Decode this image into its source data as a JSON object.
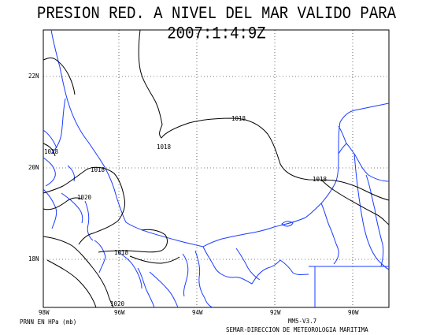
{
  "title": "PRESION RED. A NIVEL DEL MAR VALIDO PARA 2007:1:4:9Z",
  "map": {
    "lat_ticks": [
      {
        "label": "22N",
        "lat": 22
      },
      {
        "label": "20N",
        "lat": 20
      },
      {
        "label": "18N",
        "lat": 18
      }
    ],
    "lon_ticks": [
      {
        "label": "98W",
        "lon": -98
      },
      {
        "label": "96W",
        "lon": -96
      },
      {
        "label": "94W",
        "lon": -94
      },
      {
        "label": "92W",
        "lon": -92
      },
      {
        "label": "90W",
        "lon": -90
      }
    ],
    "isobar_labels": [
      "1018",
      "1018",
      "1018",
      "1018",
      "1018",
      "1020",
      "1018",
      "1020"
    ],
    "colors": {
      "coast": "#1a3cff",
      "isobar": "#000000",
      "grid": "#000000"
    }
  },
  "footer": {
    "variable": "PRNN EN HPa (mb)",
    "model": "MM5-V3.7",
    "credit": "SEMAR-DIRECCION DE METEOROLOGIA MARITIMA"
  }
}
